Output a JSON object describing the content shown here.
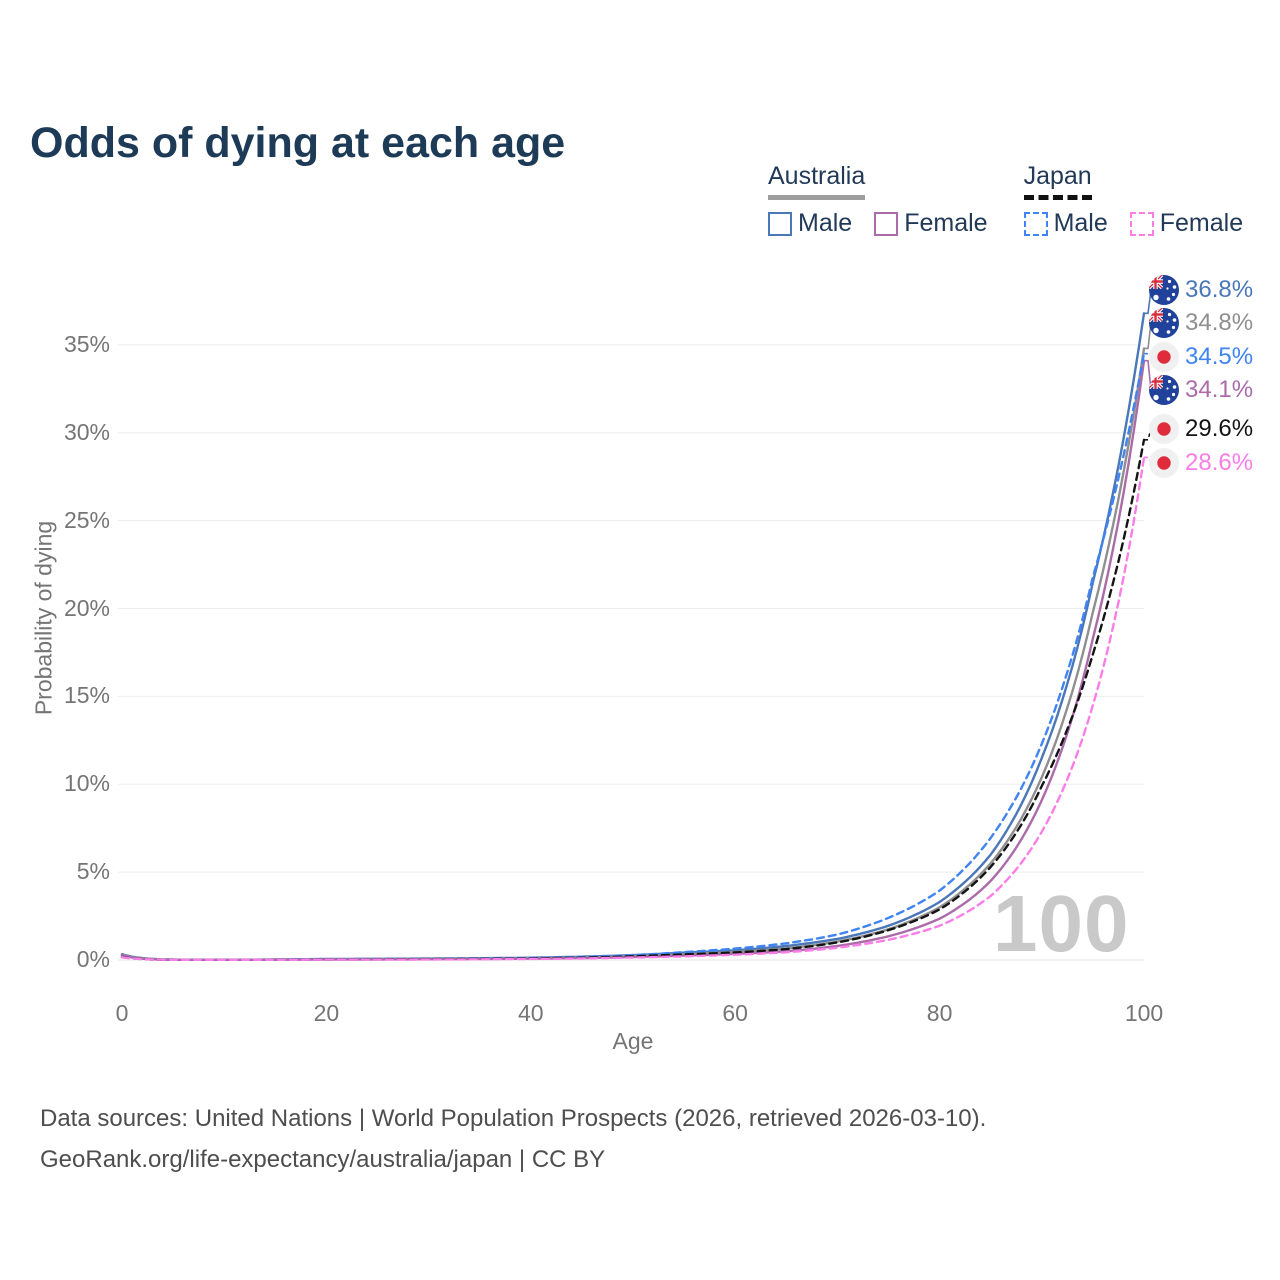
{
  "header": {
    "title": "Odds of dying at each age"
  },
  "legend": {
    "groups": [
      {
        "label": "Australia",
        "underline_style": "solid",
        "underline_color": "#9e9e9e",
        "items": [
          {
            "label": "Male",
            "color": "#4a77b8",
            "dash": false
          },
          {
            "label": "Female",
            "color": "#ab6ba9",
            "dash": false
          }
        ]
      },
      {
        "label": "Japan",
        "underline_style": "dashed",
        "underline_color": "#111111",
        "items": [
          {
            "label": "Male",
            "color": "#4084f4",
            "dash": true
          },
          {
            "label": "Female",
            "color": "#fb7de8",
            "dash": true
          }
        ]
      }
    ]
  },
  "axes": {
    "x_title": "Age",
    "y_title": "Probability of dying",
    "x_ticks": [
      {
        "v": 0,
        "label": "0"
      },
      {
        "v": 20,
        "label": "20"
      },
      {
        "v": 40,
        "label": "40"
      },
      {
        "v": 60,
        "label": "60"
      },
      {
        "v": 80,
        "label": "80"
      },
      {
        "v": 100,
        "label": "100"
      }
    ],
    "y_ticks": [
      {
        "v": 0,
        "label": "0%"
      },
      {
        "v": 5,
        "label": "5%"
      },
      {
        "v": 10,
        "label": "10%"
      },
      {
        "v": 15,
        "label": "15%"
      },
      {
        "v": 20,
        "label": "20%"
      },
      {
        "v": 25,
        "label": "25%"
      },
      {
        "v": 30,
        "label": "30%"
      },
      {
        "v": 35,
        "label": "35%"
      }
    ]
  },
  "watermark": "100",
  "footer": {
    "line1": "Data sources: United Nations | World Population Prospects (2026, retrieved 2026-03-10).",
    "line2": "GeoRank.org/life-expectancy/australia/japan | CC BY"
  },
  "chart_data": {
    "type": "line",
    "title": "Odds of dying at each age",
    "xlabel": "Age",
    "ylabel": "Probability of dying",
    "xlim": [
      0,
      100
    ],
    "ylim_percent": [
      0,
      37
    ],
    "grid": "horizontal",
    "legend_position": "top-right",
    "x": [
      0,
      5,
      10,
      15,
      20,
      25,
      30,
      35,
      40,
      45,
      50,
      55,
      60,
      65,
      70,
      75,
      80,
      85,
      90,
      95,
      100
    ],
    "series": [
      {
        "name": "Australia Male",
        "country": "Australia",
        "sex": "Male",
        "flag": "au",
        "color": "#4a77b8",
        "dash": false,
        "end_label": "36.8%",
        "end_value_percent": 36.8,
        "values_percent": [
          0.33,
          0.02,
          0.01,
          0.03,
          0.06,
          0.07,
          0.08,
          0.1,
          0.13,
          0.19,
          0.28,
          0.42,
          0.55,
          0.8,
          1.2,
          1.95,
          3.3,
          6.0,
          11.5,
          21.5,
          36.8
        ]
      },
      {
        "name": "Australia Both Sexes",
        "country": "Australia",
        "sex": "Both",
        "flag": "au",
        "color": "#8f8f8f",
        "dash": false,
        "end_label": "34.8%",
        "end_value_percent": 34.8,
        "values_percent": [
          0.3,
          0.02,
          0.01,
          0.02,
          0.04,
          0.05,
          0.06,
          0.08,
          0.1,
          0.15,
          0.22,
          0.33,
          0.45,
          0.66,
          1.05,
          1.75,
          3.0,
          5.5,
          10.4,
          19.8,
          34.8
        ]
      },
      {
        "name": "Japan Male",
        "country": "Japan",
        "sex": "Male",
        "flag": "jp",
        "color": "#4084f4",
        "dash": true,
        "end_label": "34.5%",
        "end_value_percent": 34.5,
        "values_percent": [
          0.19,
          0.01,
          0.01,
          0.02,
          0.04,
          0.05,
          0.06,
          0.08,
          0.11,
          0.17,
          0.28,
          0.45,
          0.65,
          0.95,
          1.45,
          2.4,
          3.95,
          6.95,
          12.3,
          21.8,
          34.5
        ]
      },
      {
        "name": "Australia Female",
        "country": "Australia",
        "sex": "Female",
        "flag": "au",
        "color": "#ab6ba9",
        "dash": false,
        "end_label": "34.1%",
        "end_value_percent": 34.1,
        "values_percent": [
          0.28,
          0.01,
          0.01,
          0.02,
          0.03,
          0.03,
          0.04,
          0.05,
          0.08,
          0.11,
          0.17,
          0.25,
          0.35,
          0.5,
          0.8,
          1.35,
          2.35,
          4.5,
          9.1,
          18.3,
          34.1
        ]
      },
      {
        "name": "Japan Both Sexes",
        "country": "Japan",
        "sex": "Both",
        "flag": "jp",
        "color": "#141414",
        "dash": true,
        "end_label": "29.6%",
        "end_value_percent": 29.6,
        "values_percent": [
          0.17,
          0.01,
          0.01,
          0.01,
          0.03,
          0.04,
          0.05,
          0.06,
          0.09,
          0.13,
          0.21,
          0.32,
          0.43,
          0.62,
          1.0,
          1.7,
          2.88,
          5.3,
          9.9,
          17.4,
          29.6
        ]
      },
      {
        "name": "Japan Female",
        "country": "Japan",
        "sex": "Female",
        "flag": "jp",
        "color": "#fb7de8",
        "dash": true,
        "end_label": "28.6%",
        "end_value_percent": 28.6,
        "values_percent": [
          0.16,
          0.01,
          0.01,
          0.01,
          0.02,
          0.02,
          0.03,
          0.04,
          0.06,
          0.09,
          0.14,
          0.21,
          0.3,
          0.44,
          0.7,
          1.15,
          1.95,
          3.65,
          7.3,
          14.5,
          28.6
        ]
      }
    ],
    "annotations": {
      "age_marker": "100"
    }
  }
}
